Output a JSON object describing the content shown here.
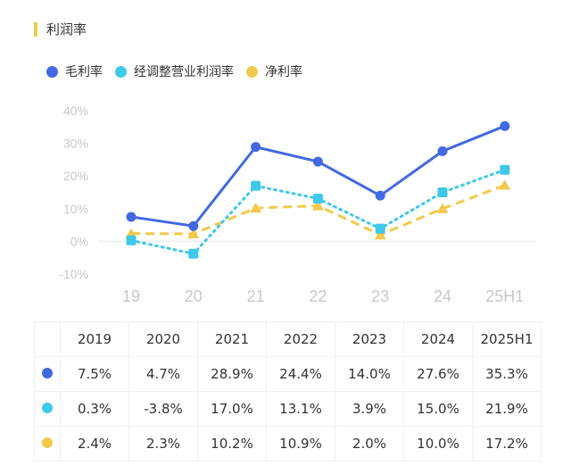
{
  "title": "利润率",
  "colors": {
    "gross": "#4169e1",
    "adj": "#3ec8ea",
    "net": "#f2c94c"
  },
  "chart_data": {
    "type": "line",
    "title": "利润率",
    "x": [
      "19",
      "20",
      "21",
      "22",
      "23",
      "24",
      "25H1"
    ],
    "ylim": [
      -10,
      40
    ],
    "yticks": [
      "40%",
      "30%",
      "20%",
      "10%",
      "0%",
      "-10%"
    ],
    "legend_position": "top-left",
    "series": [
      {
        "name": "毛利率",
        "values": [
          7.5,
          4.7,
          28.9,
          24.4,
          14.0,
          27.6,
          35.3
        ]
      },
      {
        "name": "经调整营业利润率",
        "values": [
          0.3,
          -3.8,
          17.0,
          13.1,
          3.9,
          15.0,
          21.9
        ]
      },
      {
        "name": "净利率",
        "values": [
          2.4,
          2.3,
          10.2,
          10.9,
          2.0,
          10.0,
          17.2
        ]
      }
    ]
  },
  "table": {
    "headers": [
      "2019",
      "2020",
      "2021",
      "2022",
      "2023",
      "2024",
      "2025H1"
    ],
    "rows": [
      [
        "7.5%",
        "4.7%",
        "28.9%",
        "24.4%",
        "14.0%",
        "27.6%",
        "35.3%"
      ],
      [
        "0.3%",
        "-3.8%",
        "17.0%",
        "13.1%",
        "3.9%",
        "15.0%",
        "21.9%"
      ],
      [
        "2.4%",
        "2.3%",
        "10.2%",
        "10.9%",
        "2.0%",
        "10.0%",
        "17.2%"
      ]
    ]
  }
}
